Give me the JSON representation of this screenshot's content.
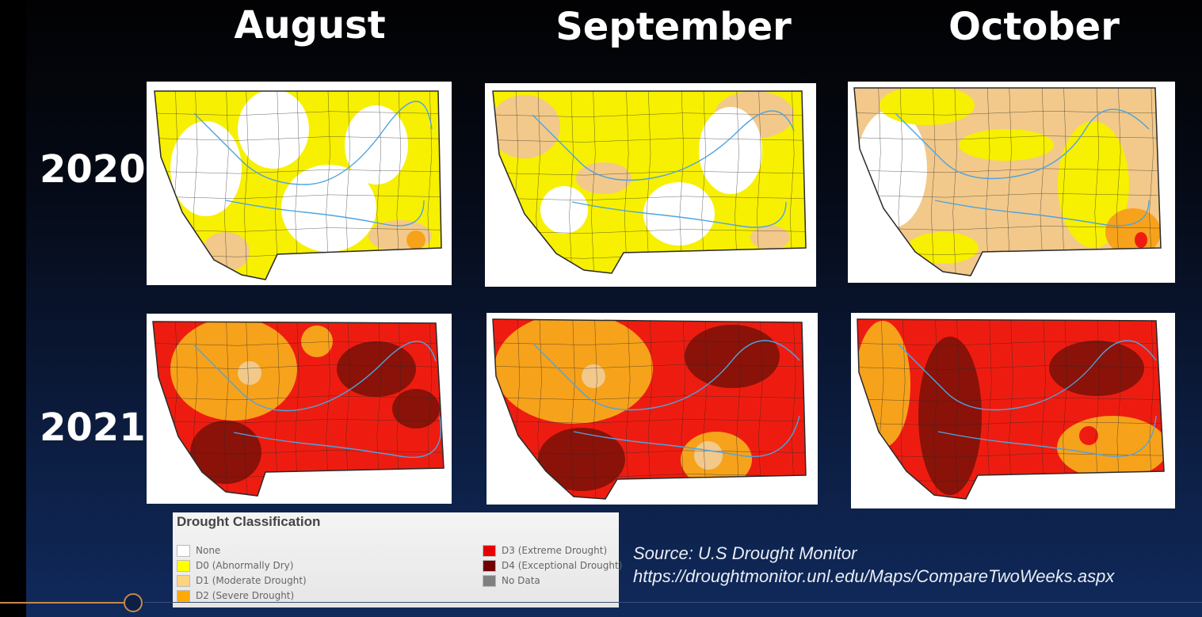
{
  "months": [
    "August",
    "September",
    "October"
  ],
  "years": [
    "2020",
    "2021"
  ],
  "legend": {
    "title": "Drought Classification",
    "items": [
      {
        "label": "None",
        "color": "#ffffff"
      },
      {
        "label": "D0 (Abnormally Dry)",
        "color": "#ffff00"
      },
      {
        "label": "D1 (Moderate Drought)",
        "color": "#fcd37f"
      },
      {
        "label": "D2 (Severe Drought)",
        "color": "#ffaa00"
      },
      {
        "label": "D3 (Extreme Drought)",
        "color": "#e60000"
      },
      {
        "label": "D4 (Exceptional Drought)",
        "color": "#730000"
      },
      {
        "label": "No Data",
        "color": "#808080"
      }
    ]
  },
  "source": {
    "line1": "Source: U.S Drought Monitor",
    "line2": "https://droughtmonitor.unl.edu/Maps/CompareTwoWeeks.aspx"
  },
  "colors": {
    "none": "#ffffff",
    "d0": "#f7f000",
    "d1": "#f2c98a",
    "d2": "#f7a21b",
    "d3": "#ee1c10",
    "d4": "#8a1208",
    "river": "#4fa3e0",
    "county": "#2a2a2a"
  }
}
